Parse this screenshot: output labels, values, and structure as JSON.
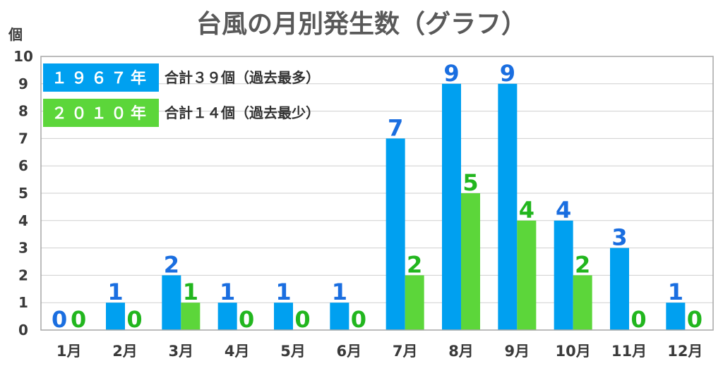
{
  "chart_data": {
    "type": "bar",
    "title": "台風の月別発生数（グラフ）",
    "ylabel": "個",
    "xlabel": "",
    "ylim": [
      0,
      10
    ],
    "yticks": [
      "0",
      "1",
      "2",
      "3",
      "4",
      "5",
      "6",
      "7",
      "8",
      "9",
      "10"
    ],
    "categories": [
      "1月",
      "2月",
      "3月",
      "4月",
      "5月",
      "6月",
      "7月",
      "8月",
      "9月",
      "10月",
      "11月",
      "12月"
    ],
    "series": [
      {
        "name": "１９６７年",
        "note": "合計３９個（過去最多）",
        "color": "#00a0f0",
        "label_color": "#1a6ee0",
        "values": [
          0,
          1,
          2,
          1,
          1,
          1,
          7,
          9,
          9,
          4,
          3,
          1
        ]
      },
      {
        "name": "２０１０年",
        "note": "合計１４個（過去最少）",
        "color": "#5cd63a",
        "label_color": "#22b61e",
        "values": [
          0,
          0,
          1,
          0,
          0,
          0,
          2,
          5,
          4,
          2,
          0,
          0
        ]
      }
    ],
    "grid": true,
    "legend_position": "top-left"
  }
}
